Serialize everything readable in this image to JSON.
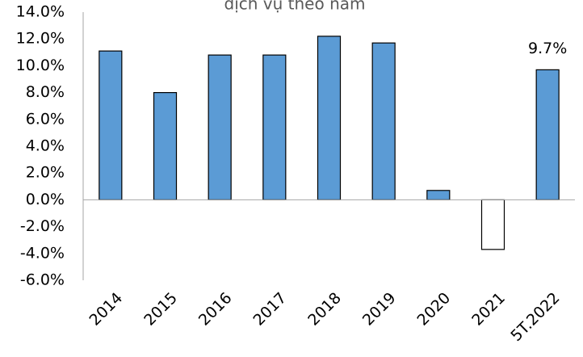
{
  "chart_data": {
    "type": "bar",
    "title": "dịch vụ theo năm",
    "categories": [
      "2014",
      "2015",
      "2016",
      "2017",
      "2018",
      "2019",
      "2020",
      "2021",
      "5T.2022"
    ],
    "values": [
      11.1,
      8.0,
      10.8,
      10.8,
      12.2,
      11.7,
      0.7,
      -3.7,
      9.7
    ],
    "value_labels": [
      null,
      null,
      null,
      null,
      null,
      null,
      null,
      null,
      "9.7%"
    ],
    "color": "#5b9bd5",
    "negative_color": "#ffffff",
    "ylim": [
      -6,
      14
    ],
    "yticks": [
      {
        "value": -6,
        "label": "-6.0%"
      },
      {
        "value": -4,
        "label": "-4.0%"
      },
      {
        "value": -2,
        "label": "-2.0%"
      },
      {
        "value": 0,
        "label": "0.0%"
      },
      {
        "value": 2,
        "label": "2.0%"
      },
      {
        "value": 4,
        "label": "4.0%"
      },
      {
        "value": 6,
        "label": "6.0%"
      },
      {
        "value": 8,
        "label": "8.0%"
      },
      {
        "value": 10,
        "label": "10.0%"
      },
      {
        "value": 12,
        "label": "12.0%"
      },
      {
        "value": 14,
        "label": "14.0%"
      }
    ],
    "grid": false
  }
}
